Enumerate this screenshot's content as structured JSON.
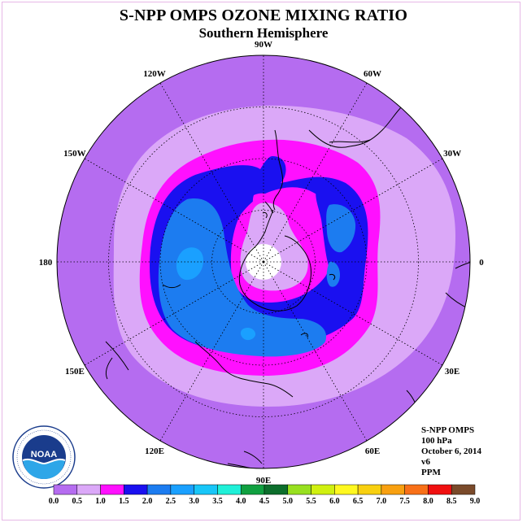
{
  "title": "S-NPP OMPS OZONE MIXING RATIO",
  "subtitle": "Southern Hemisphere",
  "info": {
    "instrument": "S-NPP OMPS",
    "level": "100 hPa",
    "date": "October 6, 2014",
    "version": "v6",
    "units": "PPM"
  },
  "logo": {
    "text": "NOAA",
    "ring_text": "NATIONAL OCEANIC AND ATMOSPHERIC ADMINISTRATION · U.S. DEPARTMENT OF COMMERCE"
  },
  "longitudes": [
    {
      "label": "90W",
      "deg": -90
    },
    {
      "label": "60W",
      "deg": -60
    },
    {
      "label": "30W",
      "deg": -30
    },
    {
      "label": "0",
      "deg": 0
    },
    {
      "label": "30E",
      "deg": 30
    },
    {
      "label": "60E",
      "deg": 60
    },
    {
      "label": "90E",
      "deg": 90
    },
    {
      "label": "120E",
      "deg": 120
    },
    {
      "label": "150E",
      "deg": 150
    },
    {
      "label": "180",
      "deg": 180
    },
    {
      "label": "150W",
      "deg": -150
    },
    {
      "label": "120W",
      "deg": -120
    }
  ],
  "colorbar": {
    "ticks": [
      "0.0",
      "0.5",
      "1.0",
      "1.5",
      "2.0",
      "2.5",
      "3.0",
      "3.5",
      "4.0",
      "4.5",
      "5.0",
      "5.5",
      "6.0",
      "6.5",
      "7.0",
      "7.5",
      "8.0",
      "8.5",
      "9.0"
    ],
    "colors": [
      "#b56cf0",
      "#dba8f8",
      "#ff10ff",
      "#1a10f0",
      "#1c7cf0",
      "#1aa0ff",
      "#18c6f8",
      "#20f0d8",
      "#10a040",
      "#0c6e2c",
      "#98e020",
      "#d0f010",
      "#fff820",
      "#f8d010",
      "#f8a010",
      "#f87018",
      "#f01010",
      "#7a4a2a"
    ]
  },
  "colors": {
    "outer": "#b56cf0",
    "band_05_10": "#dba8f8",
    "band_10_15": "#ff10ff",
    "band_15_20": "#1a10f0",
    "band_20_25": "#1c7cf0",
    "band_25_30": "#1aa0ff",
    "pole_hole": "#ffffff",
    "frame": "#e6b8e6"
  }
}
